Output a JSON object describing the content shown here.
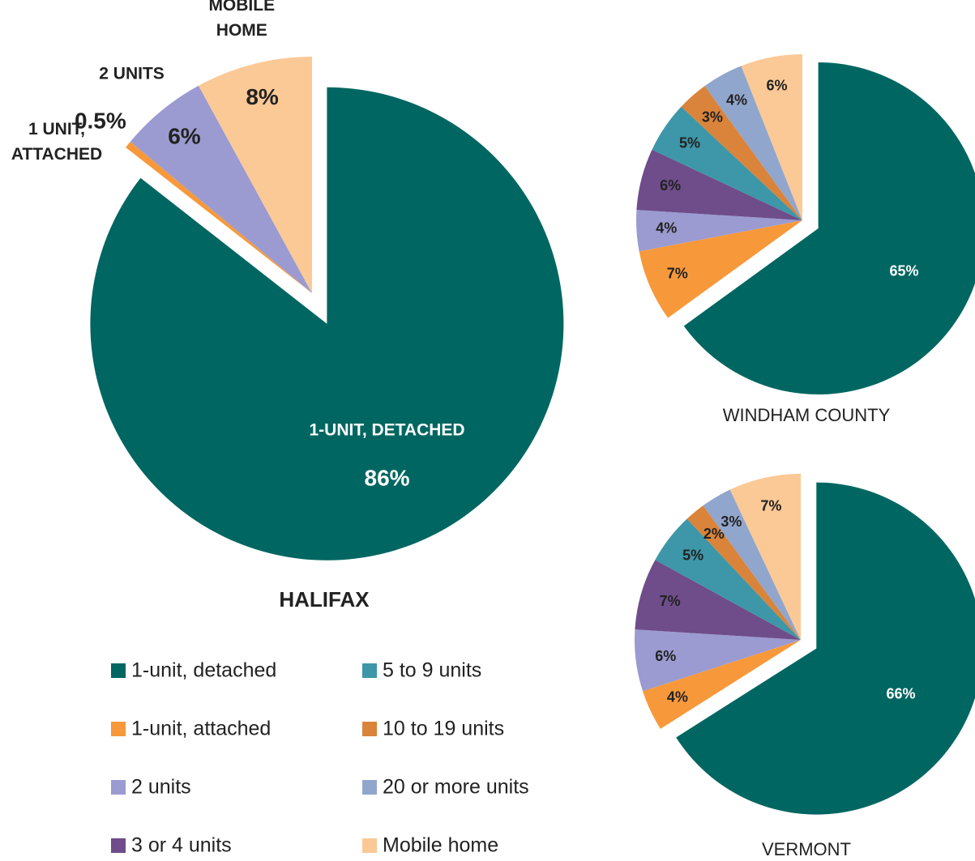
{
  "legend": {
    "labels": [
      "1-unit, detached",
      "1-unit, attached",
      "2 units",
      "3 or 4 units",
      "5 to 9 units",
      "10 to 19 units",
      "20 or more units",
      "Mobile home"
    ],
    "colors": [
      "#006661",
      "#f7993a",
      "#9b9bd1",
      "#6e4d8a",
      "#3d97a8",
      "#d9843a",
      "#91a6cc",
      "#fbc996"
    ]
  },
  "chart_data": [
    {
      "type": "pie",
      "title": "HALIFAX",
      "values": [
        86,
        0.5,
        6,
        0,
        0,
        0,
        0,
        8
      ],
      "value_labels": [
        "86%",
        "0.5%",
        "6%",
        null,
        null,
        null,
        null,
        "8%"
      ],
      "slice_labels": [
        "1-UNIT, DETACHED",
        "1 UNIT, ATTACHED",
        "2 UNITS",
        null,
        null,
        null,
        null,
        "MOBILE HOME"
      ]
    },
    {
      "type": "pie",
      "title": "WINDHAM COUNTY",
      "values": [
        65,
        7,
        4,
        6,
        5,
        3,
        4,
        6
      ],
      "value_labels": [
        "65%",
        "7%",
        "4%",
        "6%",
        "5%",
        "3%",
        "4%",
        "6%"
      ]
    },
    {
      "type": "pie",
      "title": "VERMONT",
      "values": [
        66,
        4,
        6,
        7,
        5,
        2,
        3,
        7
      ],
      "value_labels": [
        "66%",
        "4%",
        "6%",
        "7%",
        "5%",
        "2%",
        "3%",
        "7%"
      ]
    }
  ]
}
